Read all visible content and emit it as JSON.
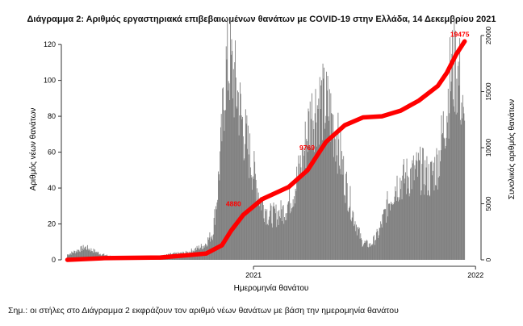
{
  "figure": {
    "title": "Διάγραμμα 2: Αριθμός εργαστηριακά επιβεβαιωμένων θανάτων με COVID-19 στην Ελλάδα, 14 Δεκεμβρίου 2021",
    "note": "Σημ.: οι στήλες στο Διάγραμμα 2 εκφράζουν τον αριθμό νέων θανάτων με βάση την ημερομηνία θανάτου"
  },
  "chart_data": {
    "type": "bar",
    "title": "Διάγραμμα 2: Αριθμός εργαστηριακά επιβεβαιωμένων θανάτων με COVID-19 στην Ελλάδα, 14 Δεκεμβρίου 2021",
    "xlabel": "Ημερομηνία θανάτου",
    "ylabel": "Αριθμός νέων θανάτων",
    "y2label": "Συνολικός αριθμός θανάτων",
    "x_range": [
      "2020-03-01",
      "2021-12-14"
    ],
    "x_ticks": [
      "2021",
      "2022"
    ],
    "ylim": [
      0,
      125
    ],
    "y_ticks": [
      0,
      20,
      40,
      60,
      80,
      100,
      120
    ],
    "y2lim": [
      0,
      20000
    ],
    "y2_ticks": [
      0,
      5000,
      10000,
      15000,
      20000
    ],
    "grid": false,
    "colors": {
      "bars": "#808080",
      "cumulative_line": "#ff0000",
      "annotation": "#ff0000"
    },
    "daily_deaths_weekly_profile": {
      "week_start": [
        "2020-03-02",
        "2020-03-30",
        "2020-04-27",
        "2020-05-25",
        "2020-06-22",
        "2020-07-20",
        "2020-08-17",
        "2020-09-14",
        "2020-09-28",
        "2020-10-12",
        "2020-10-26",
        "2020-11-02",
        "2020-11-09",
        "2020-11-16",
        "2020-11-23",
        "2020-11-30",
        "2020-12-07",
        "2020-12-14",
        "2020-12-21",
        "2020-12-28",
        "2021-01-11",
        "2021-01-25",
        "2021-02-08",
        "2021-02-22",
        "2021-03-08",
        "2021-03-22",
        "2021-04-05",
        "2021-04-19",
        "2021-05-03",
        "2021-05-17",
        "2021-05-31",
        "2021-06-14",
        "2021-06-28",
        "2021-07-12",
        "2021-07-26",
        "2021-08-09",
        "2021-08-23",
        "2021-09-06",
        "2021-09-20",
        "2021-10-04",
        "2021-10-18",
        "2021-11-01",
        "2021-11-08",
        "2021-11-15",
        "2021-11-22",
        "2021-11-29",
        "2021-12-06",
        "2021-12-13"
      ],
      "deaths_per_day": [
        3,
        7,
        3,
        1,
        1,
        1,
        3,
        4,
        6,
        8,
        15,
        35,
        65,
        105,
        110,
        100,
        90,
        75,
        65,
        55,
        35,
        25,
        25,
        28,
        38,
        55,
        80,
        88,
        85,
        70,
        45,
        25,
        10,
        8,
        15,
        30,
        42,
        45,
        48,
        50,
        45,
        55,
        70,
        85,
        105,
        108,
        100,
        70
      ]
    },
    "cumulative_series": {
      "name": "Συνολικός αριθμός θανάτων",
      "dates": [
        "2020-03-01",
        "2020-05-01",
        "2020-08-01",
        "2020-10-15",
        "2020-11-10",
        "2020-11-25",
        "2020-12-15",
        "2021-01-15",
        "2021-02-28",
        "2021-03-31",
        "2021-04-30",
        "2021-05-31",
        "2021-06-30",
        "2021-07-31",
        "2021-08-31",
        "2021-09-30",
        "2021-10-31",
        "2021-11-15",
        "2021-11-30",
        "2021-12-14"
      ],
      "values": [
        0,
        150,
        210,
        560,
        1300,
        2600,
        4000,
        5400,
        6500,
        8000,
        10500,
        12000,
        12700,
        12800,
        13300,
        14200,
        15500,
        16700,
        18300,
        19475
      ]
    },
    "annotations": [
      "4880",
      "9769",
      "19475"
    ]
  }
}
